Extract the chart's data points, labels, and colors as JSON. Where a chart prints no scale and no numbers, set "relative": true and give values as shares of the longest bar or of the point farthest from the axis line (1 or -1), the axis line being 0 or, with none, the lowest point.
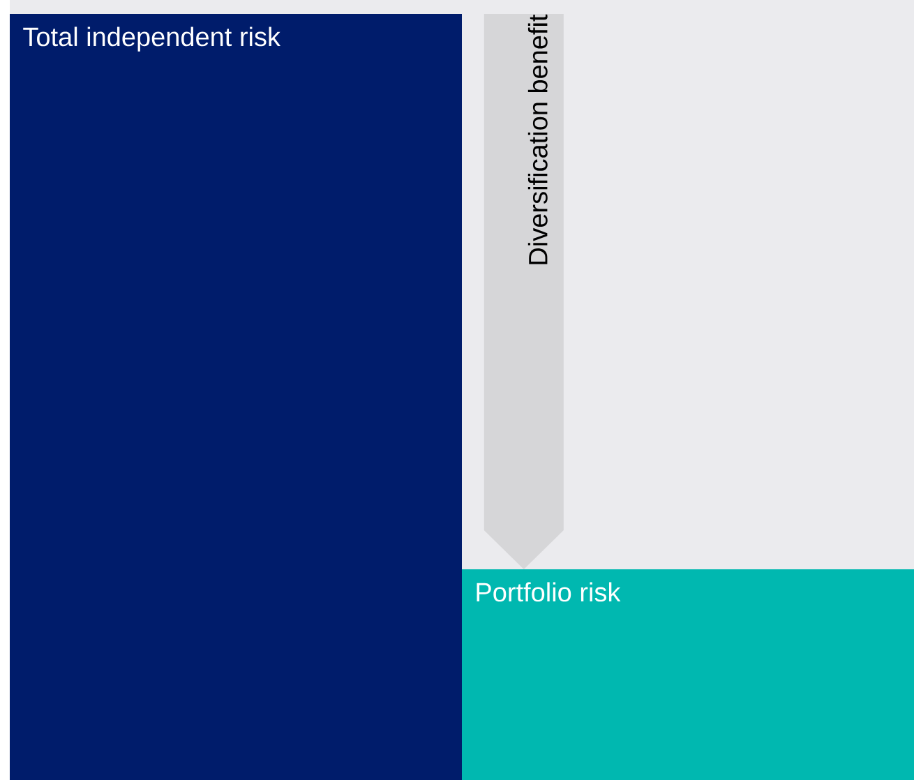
{
  "chart_data": {
    "type": "bar",
    "relative": true,
    "categories": [
      "Total independent risk",
      "Portfolio risk"
    ],
    "values": [
      1,
      0.275
    ],
    "colors": [
      "#001c6b",
      "#00b8b0"
    ],
    "annotations": [
      "Diversification benefit"
    ]
  }
}
